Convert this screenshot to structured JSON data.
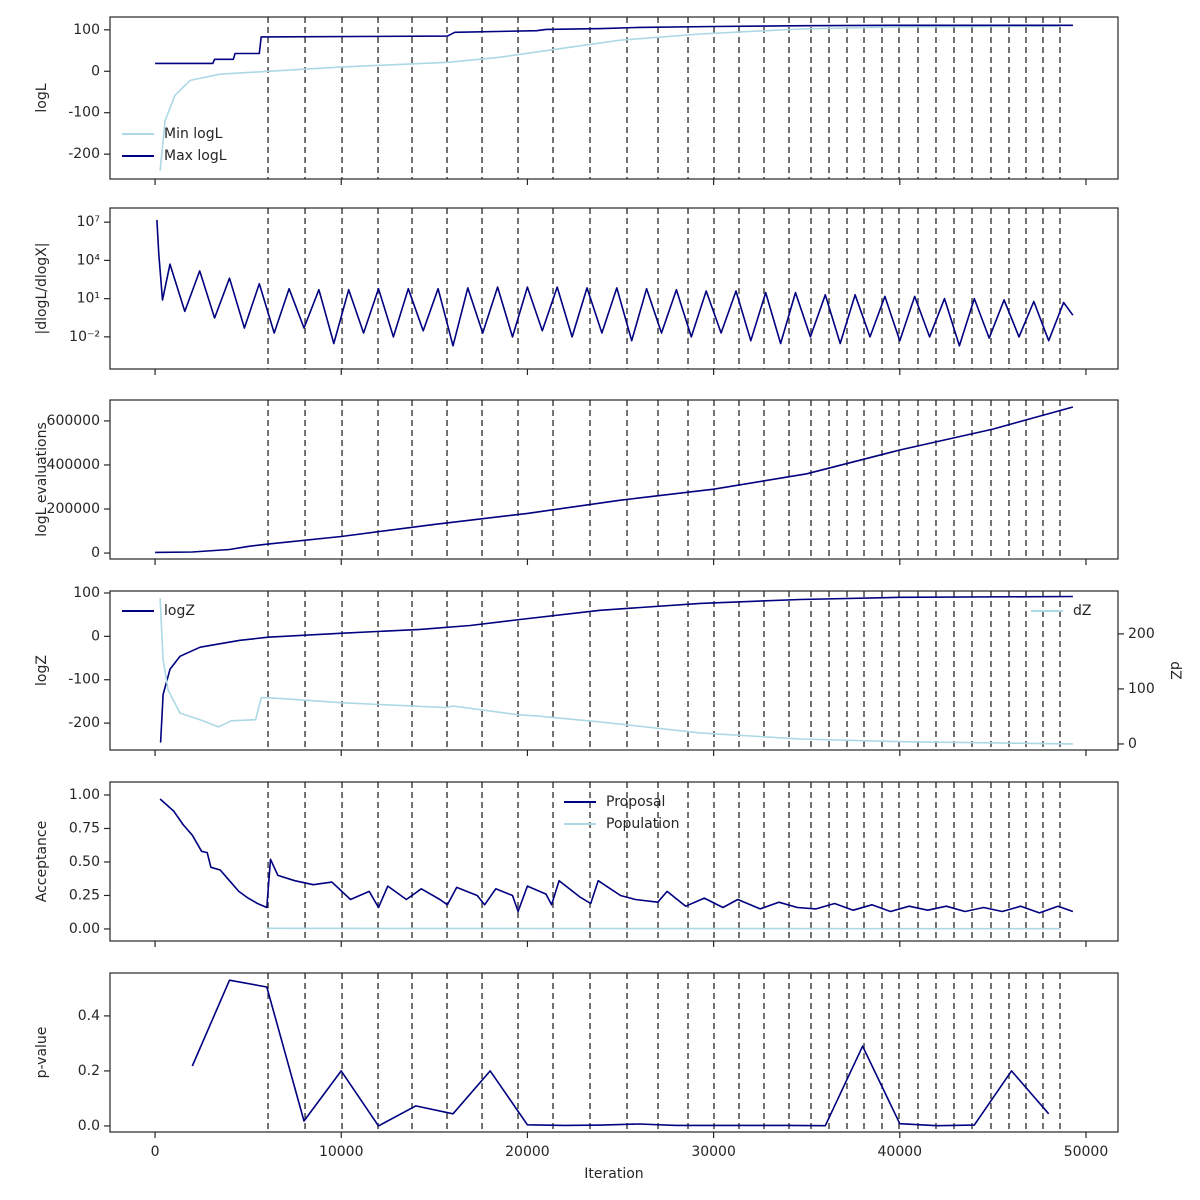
{
  "boundaries": [
    6069,
    8056,
    10043,
    11976,
    13802,
    15682,
    17562,
    19495,
    21375,
    23362,
    25349,
    27014,
    28625,
    30021,
    31364,
    32707,
    34050,
    35231,
    36198,
    37165,
    38078,
    39044,
    39957,
    40977,
    41944,
    42911,
    43878,
    44898,
    45865,
    46778,
    47691,
    48604
  ],
  "chart_data": [
    {
      "type": "line",
      "ylabel": "logL",
      "ylim": [
        -260,
        131
      ],
      "yticks": [
        -200,
        -100,
        0,
        100
      ],
      "legend": "lower left",
      "series": [
        {
          "name": "Min logL",
          "color": "#add8e6",
          "x": [
            270,
            540,
            1070,
            1880,
            3490,
            6070,
            9940,
            15840,
            18530,
            21210,
            24970,
            29270,
            34640,
            40010,
            48600
          ],
          "values": [
            -240,
            -119,
            -58,
            -22,
            -7,
            0,
            10,
            22,
            34,
            51,
            75,
            90,
            102,
            107,
            109
          ]
        },
        {
          "name": "Max logL",
          "color": "#000080",
          "x": [
            0,
            3100,
            3200,
            4200,
            4300,
            5600,
            5700,
            15700,
            16100,
            20500,
            21000,
            24000,
            26000,
            30000,
            35000,
            40000,
            49300
          ],
          "values": [
            19,
            19,
            29,
            29,
            43,
            43,
            83,
            85,
            94,
            98,
            101,
            103,
            106,
            108,
            110,
            111,
            111
          ]
        }
      ]
    },
    {
      "type": "line",
      "ylabel": "|dlogL/dlogX|",
      "log": true,
      "ylim": [
        3e-05,
        130000000
      ],
      "yticks": [
        {
          "value": 0.01,
          "label": "10⁻²"
        },
        {
          "value": 10,
          "label": "10¹"
        },
        {
          "value": 10000,
          "label": "10⁴"
        },
        {
          "value": 10000000,
          "label": "10⁷"
        }
      ],
      "series": [
        {
          "color": "#000080",
          "x": [
            100,
            200,
            400,
            800,
            1600,
            2400,
            3200,
            4000,
            4800,
            5600,
            6400,
            7200,
            8000,
            8800,
            9600,
            10400,
            11200,
            12000,
            12800,
            13600,
            14400,
            15200,
            16000,
            16800,
            17600,
            18400,
            19200,
            20000,
            20800,
            21600,
            22400,
            23200,
            24000,
            24800,
            25600,
            26400,
            27200,
            28000,
            28800,
            29600,
            30400,
            31200,
            32000,
            32800,
            33600,
            34400,
            35200,
            36000,
            36800,
            37600,
            38400,
            39200,
            40000,
            40800,
            41600,
            42400,
            43200,
            44000,
            44800,
            45600,
            46400,
            47200,
            48000,
            48800,
            49300
          ],
          "values": [
            15000000,
            30000,
            8,
            5000,
            1,
            1500,
            0.3,
            400,
            0.05,
            150,
            0.02,
            60,
            0.05,
            50,
            0.003,
            50,
            0.02,
            60,
            0.01,
            60,
            0.03,
            60,
            0.002,
            70,
            0.02,
            80,
            0.01,
            80,
            0.03,
            80,
            0.01,
            70,
            0.02,
            70,
            0.005,
            60,
            0.02,
            50,
            0.01,
            40,
            0.02,
            40,
            0.005,
            30,
            0.003,
            30,
            0.01,
            20,
            0.003,
            20,
            0.01,
            15,
            0.005,
            15,
            0.01,
            10,
            0.002,
            10,
            0.008,
            8,
            0.01,
            6,
            0.005,
            5,
            0.5
          ]
        }
      ]
    },
    {
      "type": "line",
      "ylabel": "logL evaluations",
      "ylim": [
        -27000,
        695000
      ],
      "yticks": [
        0,
        200000,
        400000,
        600000
      ],
      "series": [
        {
          "color": "#000080",
          "x": [
            0,
            2000,
            4000,
            5000,
            6000,
            10000,
            15000,
            20000,
            25000,
            30000,
            35000,
            40000,
            45000,
            49300
          ],
          "values": [
            3000,
            5000,
            16000,
            30000,
            40000,
            75000,
            130000,
            180000,
            240000,
            290000,
            360000,
            468000,
            563000,
            663000
          ]
        }
      ]
    },
    {
      "type": "line",
      "ylabel": "logZ",
      "y2label": "dZ",
      "ylim": [
        -262,
        104.6
      ],
      "yticks": [
        -200,
        -100,
        0,
        100
      ],
      "y2lim": [
        -11,
        278
      ],
      "y2ticks": [
        0,
        100,
        200
      ],
      "series": [
        {
          "name": "logZ",
          "color": "#000080",
          "legend": "upper left",
          "x": [
            300,
            430,
            800,
            1340,
            2420,
            4560,
            6070,
            9940,
            14230,
            16920,
            19600,
            23900,
            29270,
            34640,
            40010,
            49300
          ],
          "values": [
            -245,
            -134,
            -76,
            -46,
            -25,
            -9,
            -2,
            7,
            16,
            25,
            39,
            60,
            76,
            85,
            90,
            92
          ]
        },
        {
          "name": "dZ",
          "color": "#add8e6",
          "axis": "y2",
          "legend": "upper right",
          "x": [
            270,
            430,
            700,
            1340,
            2420,
            3400,
            3600,
            4100,
            5400,
            5700,
            6070,
            10000,
            15600,
            16000,
            19500,
            20500,
            23900,
            29270,
            34640,
            40010,
            49300
          ],
          "values": [
            265,
            153,
            98,
            56,
            44,
            31,
            34,
            42,
            44,
            84,
            84,
            75,
            66,
            69,
            53,
            51,
            40,
            20,
            9,
            4,
            0
          ]
        }
      ]
    },
    {
      "type": "line",
      "ylabel": "Acceptance",
      "ylim": [
        -0.09,
        1.097
      ],
      "legend": "upper center",
      "yticks": [
        {
          "value": 0,
          "label": "0.00"
        },
        {
          "value": 0.25,
          "label": "0.25"
        },
        {
          "value": 0.5,
          "label": "0.50"
        },
        {
          "value": 0.75,
          "label": "0.75"
        },
        {
          "value": 1,
          "label": "1.00"
        }
      ],
      "series": [
        {
          "name": "Proposal",
          "color": "#000080",
          "x": [
            270,
            1000,
            1500,
            2000,
            2500,
            2800,
            3000,
            3500,
            4000,
            4500,
            5000,
            5500,
            6000,
            6200,
            6600,
            7500,
            8500,
            9500,
            10500,
            11500,
            12000,
            12500,
            13500,
            14300,
            15300,
            15700,
            16200,
            17300,
            17700,
            18300,
            19200,
            19500,
            20000,
            21000,
            21300,
            21700,
            22800,
            23400,
            23800,
            25000,
            25800,
            27000,
            27500,
            28500,
            29500,
            30500,
            31300,
            32500,
            33500,
            34500,
            35500,
            36500,
            37500,
            38500,
            39500,
            40500,
            41500,
            42500,
            43500,
            44500,
            45500,
            46500,
            47500,
            48500,
            49300
          ],
          "values": [
            0.97,
            0.88,
            0.78,
            0.7,
            0.58,
            0.57,
            0.46,
            0.44,
            0.36,
            0.28,
            0.23,
            0.19,
            0.16,
            0.52,
            0.4,
            0.36,
            0.33,
            0.35,
            0.22,
            0.28,
            0.16,
            0.32,
            0.22,
            0.3,
            0.22,
            0.18,
            0.31,
            0.25,
            0.18,
            0.3,
            0.25,
            0.13,
            0.32,
            0.26,
            0.18,
            0.36,
            0.24,
            0.19,
            0.36,
            0.25,
            0.22,
            0.2,
            0.28,
            0.17,
            0.23,
            0.16,
            0.22,
            0.15,
            0.2,
            0.16,
            0.15,
            0.19,
            0.14,
            0.18,
            0.13,
            0.17,
            0.14,
            0.17,
            0.13,
            0.16,
            0.13,
            0.17,
            0.12,
            0.17,
            0.13
          ]
        },
        {
          "name": "Population",
          "color": "#add8e6",
          "x": [
            6000,
            20000,
            48600
          ],
          "values": [
            0.005,
            0.003,
            0.002
          ]
        }
      ]
    },
    {
      "type": "line",
      "ylabel": "p-value",
      "xlabel": "Iteration",
      "ylim": [
        -0.022,
        0.556
      ],
      "yticks": [
        {
          "value": 0,
          "label": "0.0"
        },
        0.2,
        0.4
      ],
      "xlim": [
        -2420,
        51720
      ],
      "xticks": [
        0,
        10000,
        20000,
        30000,
        40000,
        50000
      ],
      "series": [
        {
          "color": "#000080",
          "x": [
            2000,
            4000,
            6000,
            8000,
            10000,
            12000,
            14000,
            16000,
            18000,
            20000,
            22000,
            24000,
            26000,
            28000,
            30000,
            32000,
            34000,
            36000,
            38000,
            40000,
            42000,
            44000,
            46000,
            48000
          ],
          "values": [
            0.218,
            0.53,
            0.505,
            0.018,
            0.2,
            0.0,
            0.073,
            0.044,
            0.2,
            0.004,
            0.002,
            0.003,
            0.007,
            0.002,
            0.002,
            0.002,
            0.002,
            0.001,
            0.29,
            0.008,
            0.001,
            0.003,
            0.2,
            0.044
          ]
        }
      ]
    }
  ]
}
